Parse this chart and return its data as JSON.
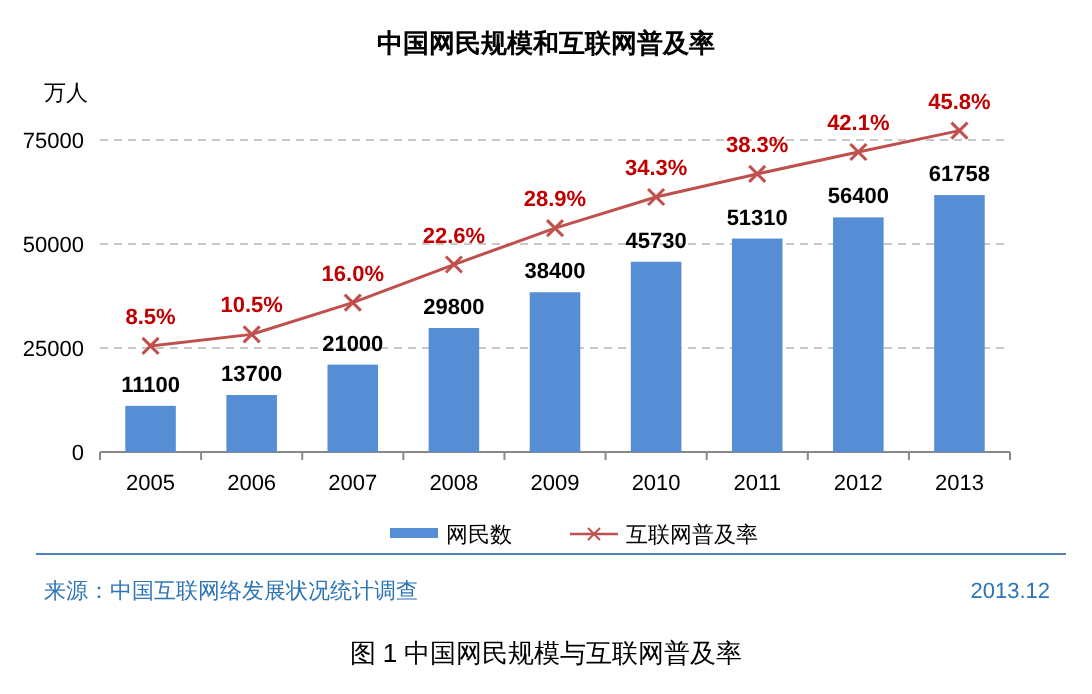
{
  "chart_data": {
    "type": "bar",
    "title": "中国网民规模和互联网普及率",
    "ylabel": "万人",
    "categories": [
      "2005",
      "2006",
      "2007",
      "2008",
      "2009",
      "2010",
      "2011",
      "2012",
      "2013"
    ],
    "series": [
      {
        "name": "网民数",
        "color": "#558ed5",
        "values": [
          11100,
          13700,
          21000,
          29800,
          38400,
          45730,
          51310,
          56400,
          61758
        ]
      },
      {
        "name": "互联网普及率",
        "type": "line",
        "axis": "y2",
        "color": "#c0504d",
        "marker": "cross",
        "values": [
          8.5,
          10.5,
          16.0,
          22.6,
          28.9,
          34.3,
          38.3,
          42.1,
          45.8
        ],
        "value_labels": [
          "8.5%",
          "10.5%",
          "16.0%",
          "22.6%",
          "28.9%",
          "34.3%",
          "38.3%",
          "42.1%",
          "45.8%"
        ]
      }
    ],
    "ylim": [
      0,
      75000
    ],
    "yticks": [
      0,
      25000,
      50000,
      75000
    ],
    "tick_labels": "x_y",
    "grid": "y",
    "legend": "bottom",
    "data_labels": true,
    "annotations": [
      "来源：中国互联网络发展状况统计调查",
      "2013.12",
      "图 1 中国网民规模与互联网普及率"
    ]
  }
}
